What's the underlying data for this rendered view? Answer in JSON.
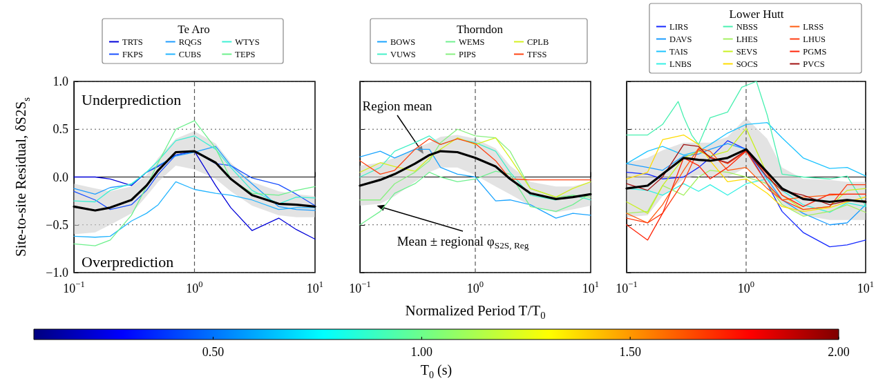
{
  "chart_data": [
    {
      "type": "line",
      "legend_title": "Te Aro",
      "legend": "top",
      "grid": "y",
      "log": "x",
      "marker": "none",
      "ylabel": "Site-to-site Residual, δS2S$_{s}$",
      "tick_labels": "xy",
      "xlim": [
        0.1,
        10
      ],
      "xticks": [
        {
          "value": 0.1,
          "label": "10$^{−1}$"
        },
        {
          "value": 1,
          "label": "10$^{0}$"
        },
        {
          "value": 10,
          "label": "10$^{1}$"
        }
      ],
      "ylim": [
        -1,
        1
      ],
      "yticks": [
        {
          "value": -1,
          "label": "−1.0"
        },
        {
          "value": -0.5,
          "label": "−0.5"
        },
        {
          "value": 0,
          "label": "0.0"
        },
        {
          "value": 0.5,
          "label": "0.5"
        },
        {
          "value": 1,
          "label": "1.0"
        }
      ],
      "x": [
        0.1,
        0.15,
        0.2,
        0.3,
        0.4,
        0.5,
        0.7,
        1,
        1.5,
        2,
        3,
        5,
        7,
        10
      ],
      "series": [
        {
          "name": "TRTS",
          "color": "#0000d8",
          "values": [
            0,
            0,
            -0.02,
            -0.09,
            0.05,
            0.11,
            0.23,
            0.27,
            -0.09,
            -0.32,
            -0.56,
            -0.43,
            -0.55,
            -0.65
          ]
        },
        {
          "name": "FKPS",
          "color": "#1a50ff",
          "values": [
            -0.15,
            -0.24,
            -0.34,
            -0.29,
            -0.14,
            0.03,
            0.23,
            0.27,
            0.14,
            0.12,
            -0.01,
            -0.08,
            -0.18,
            -0.3
          ]
        },
        {
          "name": "RQGS",
          "color": "#1e9cff",
          "values": [
            -0.12,
            -0.18,
            -0.11,
            -0.08,
            0.05,
            0.12,
            0.22,
            0.26,
            0.32,
            0.12,
            -0.07,
            -0.31,
            -0.34,
            -0.35
          ]
        },
        {
          "name": "CUBS",
          "color": "#22b4ff",
          "values": [
            -0.62,
            -0.63,
            -0.62,
            -0.46,
            -0.38,
            -0.29,
            -0.05,
            -0.13,
            -0.17,
            -0.19,
            -0.24,
            -0.34,
            -0.32,
            -0.32
          ]
        },
        {
          "name": "WTYS",
          "color": "#3ef0d4",
          "values": [
            -0.25,
            -0.26,
            -0.14,
            -0.07,
            0.05,
            0.17,
            0.38,
            0.43,
            0.29,
            0.1,
            -0.14,
            -0.28,
            -0.21,
            -0.22
          ]
        },
        {
          "name": "TEPS",
          "color": "#6cf08c",
          "values": [
            -0.7,
            -0.72,
            -0.66,
            -0.4,
            -0.1,
            0.15,
            0.5,
            0.59,
            0.3,
            -0.02,
            -0.17,
            -0.19,
            -0.14,
            -0.1
          ]
        },
        {
          "color": "#000000",
          "values": [
            -0.31,
            -0.35,
            -0.32,
            -0.24,
            -0.09,
            0.07,
            0.26,
            0.27,
            0.15,
            -0.02,
            -0.19,
            -0.28,
            -0.29,
            -0.31
          ],
          "lower": [
            -0.6,
            -0.58,
            -0.5,
            -0.38,
            -0.2,
            -0.05,
            0.12,
            0.08,
            -0.02,
            -0.15,
            -0.3,
            -0.4,
            -0.42,
            -0.42
          ],
          "upper": [
            -0.07,
            -0.12,
            -0.15,
            -0.1,
            0.02,
            0.2,
            0.4,
            0.48,
            0.35,
            0.15,
            -0.05,
            -0.15,
            -0.18,
            -0.2
          ]
        }
      ],
      "ref_lines": [
        {
          "axis": "x",
          "value": 1,
          "line_style": "dashed",
          "color": "#555555"
        }
      ],
      "annotations": [
        "Underprediction",
        "Overprediction"
      ],
      "clabel": "T$_{0}$ (s)",
      "clim": [
        0.07,
        2.0
      ],
      "cticks": [
        {
          "value": 0.5,
          "label": "0.50"
        },
        {
          "value": 1,
          "label": "1.00"
        },
        {
          "value": 1.5,
          "label": "1.50"
        },
        {
          "value": 2,
          "label": "2.00"
        }
      ]
    },
    {
      "type": "line",
      "legend_title": "Thorndon",
      "legend": "top",
      "grid": "y",
      "log": "x",
      "marker": "none",
      "xlabel": "Normalized Period T/T$_{0}$",
      "tick_labels": "x",
      "xlim": [
        0.1,
        10
      ],
      "xticks": [
        {
          "value": 0.1,
          "label": "10$^{−1}$"
        },
        {
          "value": 1,
          "label": "10$^{0}$"
        },
        {
          "value": 10,
          "label": "10$^{1}$"
        }
      ],
      "ylim": [
        -1,
        1
      ],
      "yticks": [
        -1,
        -0.5,
        0,
        0.5,
        1
      ],
      "x": [
        0.1,
        0.15,
        0.2,
        0.3,
        0.4,
        0.5,
        0.7,
        1,
        1.5,
        2,
        3,
        5,
        7,
        10
      ],
      "series": [
        {
          "name": "BOWS",
          "color": "#1aa4ff",
          "values": [
            0.21,
            0.27,
            0.2,
            0.29,
            0.29,
            0.1,
            0.03,
            0.0,
            -0.25,
            -0.24,
            -0.29,
            -0.43,
            -0.38,
            -0.4
          ]
        },
        {
          "name": "VUWS",
          "color": "#44f0c8",
          "values": [
            0,
            0.1,
            0.27,
            0.36,
            0.43,
            0.34,
            0.4,
            0.36,
            0.27,
            0.05,
            -0.19,
            -0.24,
            -0.19,
            -0.24
          ]
        },
        {
          "name": "WEMS",
          "color": "#70f090",
          "values": [
            -0.5,
            -0.36,
            -0.17,
            -0.07,
            0.05,
            0,
            -0.05,
            -0.02,
            0.06,
            0.03,
            -0.31,
            -0.36,
            -0.29,
            -0.17
          ]
        },
        {
          "name": "PIPS",
          "color": "#88f080",
          "values": [
            -0.24,
            -0.24,
            -0.07,
            0.05,
            0.17,
            0.36,
            0.5,
            0.43,
            0.41,
            0.27,
            -0.12,
            -0.21,
            -0.19,
            -0.21
          ]
        },
        {
          "name": "CPLB",
          "color": "#d4f020",
          "values": [
            0.05,
            0.15,
            0.11,
            0.06,
            0.2,
            0.29,
            0.41,
            0.34,
            0.41,
            0.2,
            -0.12,
            -0.21,
            -0.12,
            -0.05
          ]
        },
        {
          "name": "TFSS",
          "color": "#ff4414",
          "values": [
            0.17,
            0.03,
            0.07,
            0.29,
            0.4,
            0.34,
            0.4,
            0.35,
            0.17,
            -0.02,
            -0.03,
            -0.03,
            -0.03,
            -0.03
          ]
        },
        {
          "color": "#000000",
          "values": [
            -0.09,
            -0.03,
            0.03,
            0.14,
            0.23,
            0.27,
            0.26,
            0.2,
            0.11,
            -0.02,
            -0.17,
            -0.23,
            -0.21,
            -0.18
          ],
          "lower": [
            -0.3,
            -0.28,
            -0.2,
            -0.05,
            0.05,
            0.1,
            0.1,
            0.02,
            -0.1,
            -0.18,
            -0.3,
            -0.37,
            -0.34,
            -0.3
          ],
          "upper": [
            0.12,
            0.15,
            0.2,
            0.3,
            0.36,
            0.42,
            0.44,
            0.4,
            0.3,
            0.12,
            -0.05,
            -0.1,
            -0.1,
            -0.05
          ]
        }
      ],
      "ref_lines": [
        {
          "axis": "x",
          "value": 1,
          "line_style": "dashed",
          "color": "#555555"
        }
      ],
      "annotations": [
        "Region mean",
        {
          "text": "Mean ± regional φ$_{S2S, Reg}$",
          "x": 0.14,
          "y": -0.3
        }
      ]
    },
    {
      "type": "line",
      "legend_title": "Lower Hutt",
      "legend": "top",
      "grid": "y",
      "log": "x",
      "marker": "none",
      "tick_labels": "x",
      "xlim": [
        0.1,
        10
      ],
      "xticks": [
        {
          "value": 0.1,
          "label": "10$^{−1}$"
        },
        {
          "value": 1,
          "label": "10$^{0}$"
        },
        {
          "value": 10,
          "label": "10$^{1}$"
        }
      ],
      "ylim": [
        -1,
        1
      ],
      "yticks": [
        -1,
        -0.5,
        0,
        0.5,
        1
      ],
      "x": [
        0.1,
        0.15,
        0.2,
        0.3,
        0.4,
        0.5,
        0.7,
        1,
        1.5,
        2,
        3,
        5,
        7,
        10
      ],
      "series": [
        {
          "name": "LIRS",
          "color": "#1428ff",
          "values": [
            0.05,
            0.03,
            -0.02,
            0,
            0.1,
            0.2,
            0.38,
            0.29,
            -0.07,
            -0.36,
            -0.58,
            -0.73,
            -0.71,
            -0.66
          ]
        },
        {
          "name": "DAVS",
          "color": "#1a9cff",
          "values": [
            0.14,
            0.1,
            0.07,
            0.22,
            0.24,
            0.29,
            0.35,
            0.29,
            -0.02,
            -0.24,
            -0.38,
            -0.5,
            -0.48,
            -0.29
          ]
        },
        {
          "name": "TAIS",
          "color": "#1ec4ff",
          "values": [
            0.14,
            0.27,
            0.32,
            0.23,
            0.27,
            0.34,
            0.46,
            0.55,
            0.57,
            0.41,
            0.2,
            0.09,
            0.1,
            0.01
          ]
        },
        {
          "name": "LNBS",
          "color": "#34f0e4",
          "values": [
            -0.12,
            -0.14,
            -0.19,
            -0.07,
            -0.15,
            -0.08,
            -0.19,
            -0.07,
            -0.02,
            -0.14,
            -0.29,
            -0.37,
            -0.27,
            -0.31
          ]
        },
        {
          "name": "NBSS",
          "color": "#48f0b0",
          "x": [
            0.1,
            0.15,
            0.2,
            0.27,
            0.3,
            0.35,
            0.4,
            0.5,
            0.7,
            0.92,
            1.22,
            1.5,
            2,
            3,
            5,
            7,
            10
          ],
          "values": [
            0.44,
            0.44,
            0.55,
            0.79,
            0.63,
            0.44,
            0.34,
            0.62,
            0.68,
            0.94,
            1.0,
            0.65,
            0.03,
            0,
            -0.02,
            0.01,
            -0.3
          ]
        },
        {
          "name": "LHES",
          "color": "#a4f060",
          "values": [
            -0.38,
            -0.36,
            -0.09,
            -0.19,
            0,
            0.07,
            0.05,
            0,
            -0.07,
            -0.29,
            -0.41,
            -0.36,
            -0.29,
            -0.37
          ]
        },
        {
          "name": "SEVS",
          "color": "#c8f020",
          "values": [
            -0.26,
            -0.38,
            -0.09,
            0.2,
            0.27,
            0.22,
            0.27,
            0.51,
            0.03,
            -0.19,
            -0.34,
            -0.31,
            -0.14,
            -0.12
          ]
        },
        {
          "name": "SOCS",
          "color": "#ffdc00",
          "values": [
            -0.02,
            0.05,
            0.39,
            0.44,
            0.34,
            0.17,
            -0.05,
            -0.02,
            -0.17,
            -0.31,
            -0.36,
            -0.32,
            -0.26,
            -0.21
          ]
        },
        {
          "name": "LRSS",
          "color": "#ff5c10",
          "values": [
            -0.38,
            -0.48,
            -0.29,
            0.07,
            0.3,
            0.27,
            0.07,
            0.1,
            -0.12,
            -0.24,
            -0.21,
            -0.19,
            -0.18,
            -0.18
          ]
        },
        {
          "name": "LHUS",
          "color": "#ff3c10",
          "values": [
            -0.43,
            -0.48,
            -0.38,
            -0.05,
            0.29,
            0.21,
            0.14,
            0.27,
            -0.07,
            -0.24,
            -0.34,
            -0.31,
            -0.08,
            -0.08
          ]
        },
        {
          "name": "PGMS",
          "color": "#ff2408",
          "values": [
            -0.5,
            -0.66,
            -0.38,
            0.2,
            0.12,
            -0.02,
            0.1,
            0.27,
            0.03,
            -0.19,
            -0.31,
            -0.18,
            -0.18,
            -0.18
          ]
        },
        {
          "name": "PVCS",
          "color": "#a01010",
          "values": [
            -0.07,
            -0.14,
            0,
            0.34,
            0.32,
            0.2,
            0.15,
            0.28,
            0,
            -0.14,
            -0.19,
            -0.29,
            -0.25,
            -0.25
          ]
        },
        {
          "color": "#000000",
          "values": [
            -0.12,
            -0.09,
            0.03,
            0.2,
            0.18,
            0.17,
            0.2,
            0.29,
            0.05,
            -0.12,
            -0.23,
            -0.26,
            -0.24,
            -0.26
          ],
          "lower": [
            -0.42,
            -0.4,
            -0.2,
            -0.02,
            0.02,
            0,
            0,
            0.1,
            -0.1,
            -0.3,
            -0.4,
            -0.45,
            -0.45,
            -0.45
          ],
          "upper": [
            0.15,
            0.2,
            0.28,
            0.36,
            0.36,
            0.36,
            0.42,
            0.62,
            0.4,
            0.1,
            -0.02,
            -0.03,
            -0.05,
            -0.05
          ]
        }
      ],
      "ref_lines": [
        {
          "axis": "x",
          "value": 1,
          "line_style": "dashed",
          "color": "#555555"
        }
      ]
    }
  ]
}
